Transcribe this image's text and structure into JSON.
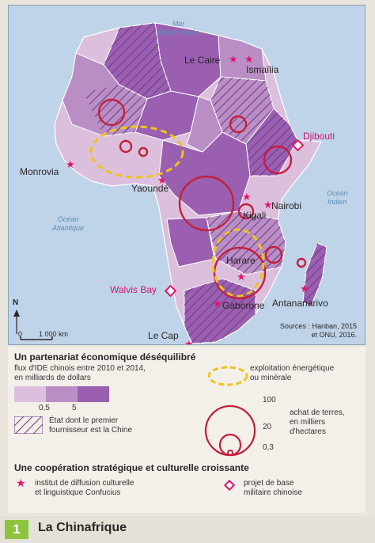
{
  "map": {
    "sea_labels": {
      "mediterranean": "Mer\nMéditerranée",
      "atlantic": "Océan\nAtlantique",
      "indian": "Océan\nIndien"
    },
    "cities": [
      {
        "id": "le-caire",
        "name": "Le Caire",
        "marker": "confucius"
      },
      {
        "id": "ismailia",
        "name": "Ismaïlia",
        "marker": "confucius"
      },
      {
        "id": "monrovia",
        "name": "Monrovia",
        "marker": "confucius"
      },
      {
        "id": "yaounde",
        "name": "Yaoundé",
        "marker": "confucius"
      },
      {
        "id": "nairobi",
        "name": "Nairobi",
        "marker": "confucius"
      },
      {
        "id": "kigali",
        "name": "Kigali",
        "marker": "confucius"
      },
      {
        "id": "harare",
        "name": "Harare",
        "marker": "confucius"
      },
      {
        "id": "gaborone",
        "name": "Gaborone",
        "marker": "confucius"
      },
      {
        "id": "antananarivo",
        "name": "Antananarivo",
        "marker": "confucius"
      },
      {
        "id": "le-cap",
        "name": "Le Cap",
        "marker": "confucius"
      }
    ],
    "bases": [
      {
        "id": "djibouti",
        "name": "Djibouti"
      },
      {
        "id": "walvis-bay",
        "name": "Walvis Bay"
      }
    ],
    "scale": {
      "zero": "0",
      "distance": "1 000 km"
    },
    "north": "N",
    "sources": "Sources : Hanban, 2015\net ONU, 2016.",
    "colors": {
      "light": "#dcbfdc",
      "mid": "#b98ec5",
      "dark": "#9a5fb0",
      "ocean": "#bfd4e8",
      "circle": "#c2203c",
      "energy": "#f0c419",
      "star": "#e0156b"
    }
  },
  "legend": {
    "section1_title": "Un partenariat économique déséquilibré",
    "ide_label": "flux d'IDE chinois entre 2010 et 2014,\nen milliards de dollars",
    "ide_ticks": [
      "0,5",
      "5"
    ],
    "hatch_label": "État dont le premier\nfournisseur est la Chine",
    "energy_label": "exploitation énergétique\nou minérale",
    "land_values": [
      "100",
      "20",
      "0,3"
    ],
    "land_label": "achat de terres,\nen milliers\nd'hectares",
    "section2_title": "Une coopération stratégique et culturelle croissante",
    "confucius_label": "institut de diffusion culturelle\net linguistique Confucius",
    "base_label": "projet de base\nmilitaire chinoise"
  },
  "figure": {
    "number": "1",
    "title": "La Chinafrique"
  }
}
